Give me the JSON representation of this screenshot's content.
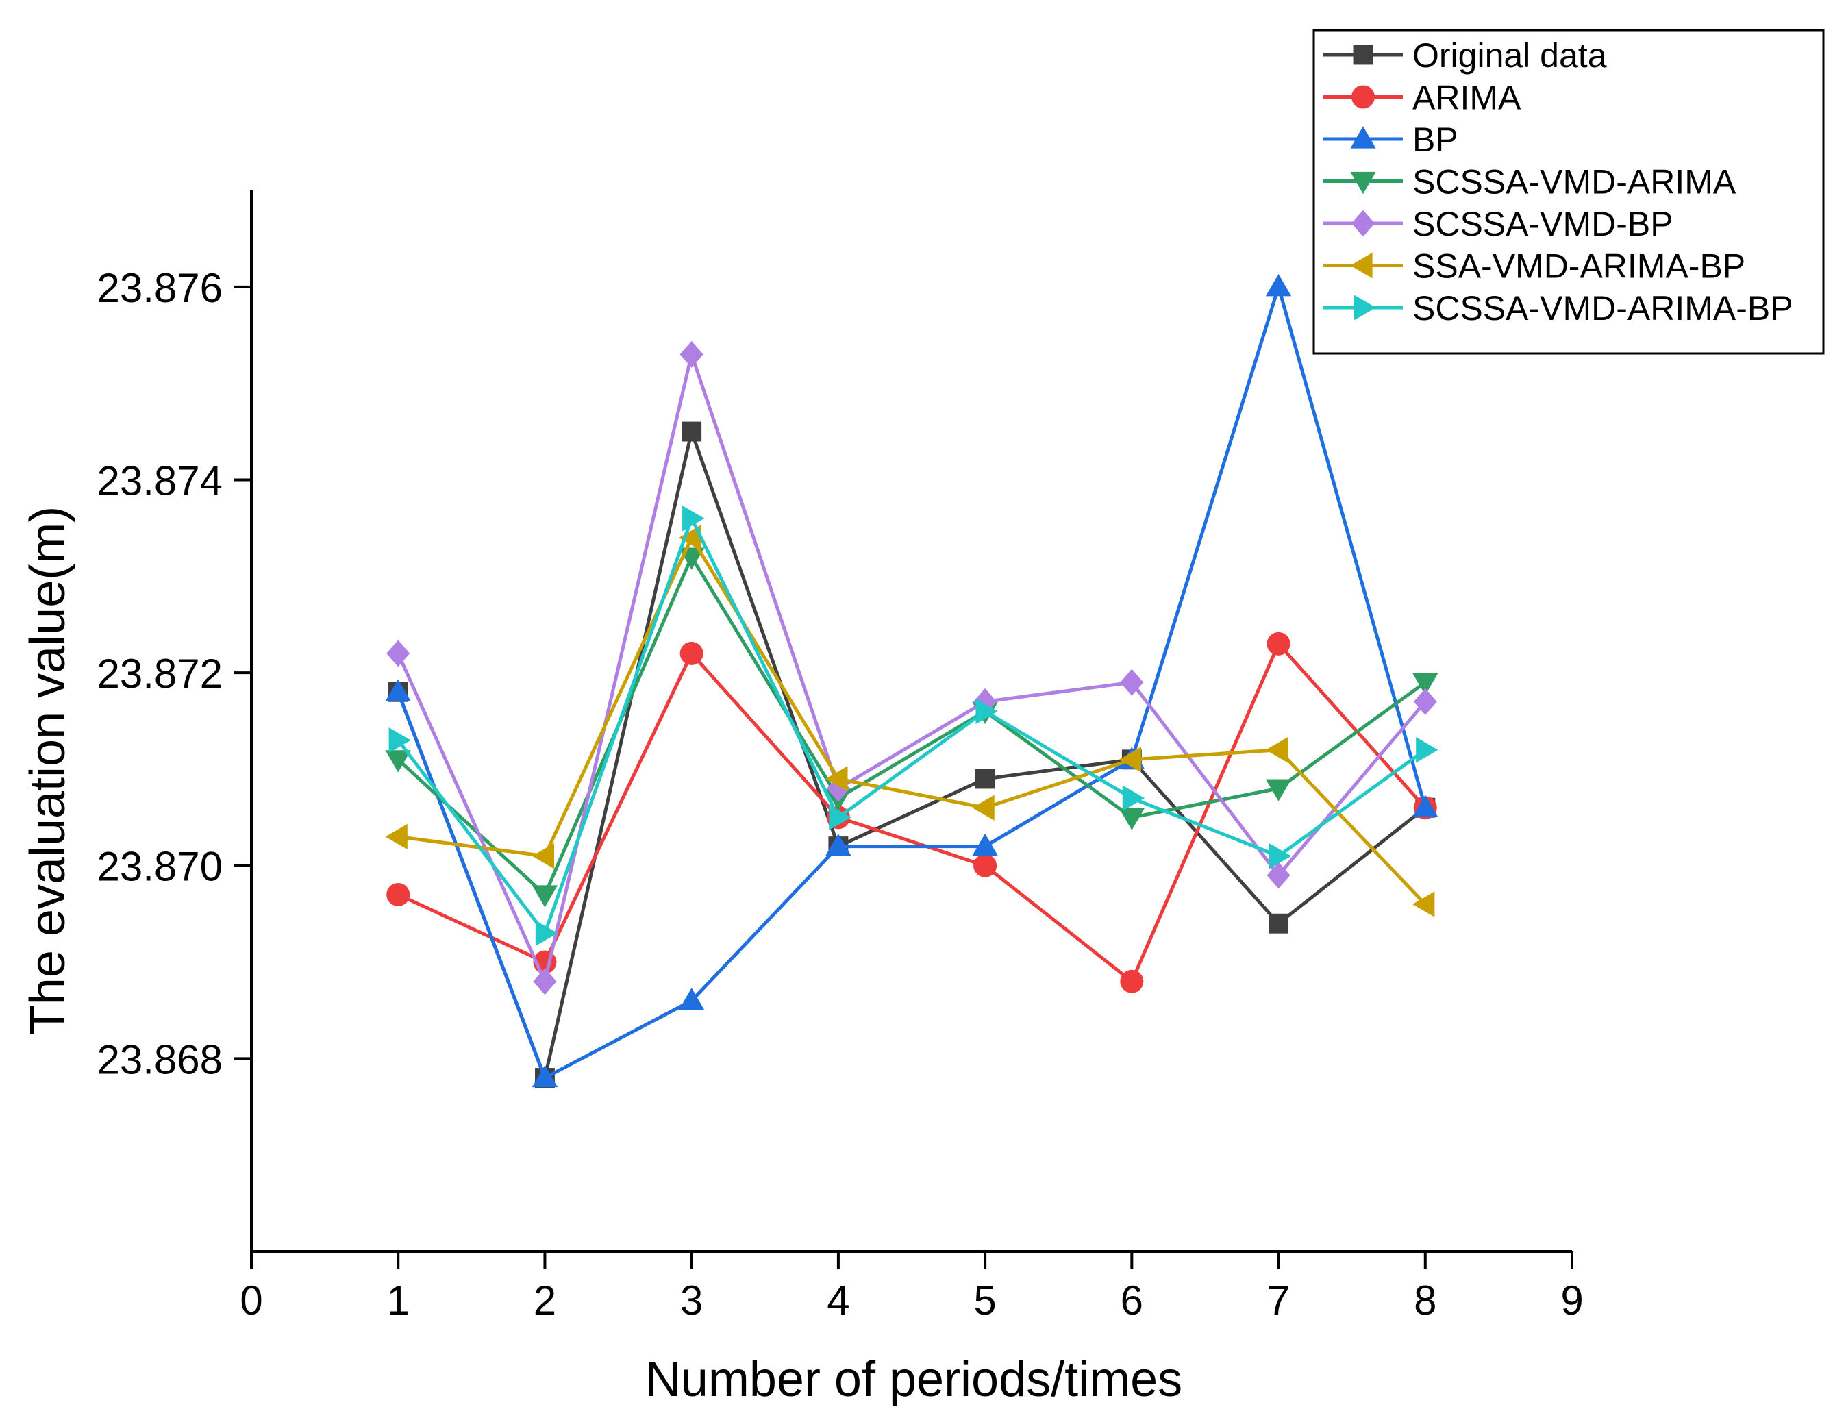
{
  "chart_data": {
    "type": "line",
    "title": "",
    "xlabel": "Number of periods/times",
    "ylabel": "The evaluation value(m)",
    "xlim": [
      0,
      9
    ],
    "ylim": [
      23.866,
      23.877
    ],
    "xticks": [
      0,
      1,
      2,
      3,
      4,
      5,
      6,
      7,
      8,
      9
    ],
    "xtick_labels": [
      "0",
      "1",
      "2",
      "3",
      "4",
      "5",
      "6",
      "7",
      "8",
      "9"
    ],
    "yticks": [
      23.868,
      23.87,
      23.872,
      23.874,
      23.876
    ],
    "ytick_labels": [
      "23.868",
      "23.870",
      "23.872",
      "23.874",
      "23.876"
    ],
    "grid": false,
    "legend_position": "top-right",
    "x": [
      1,
      2,
      3,
      4,
      5,
      6,
      7,
      8
    ],
    "series": [
      {
        "name": "Original data",
        "color": "#404040",
        "marker": "square",
        "values": [
          23.8718,
          23.8678,
          23.8745,
          23.8702,
          23.8709,
          23.8711,
          23.8694,
          23.8706
        ]
      },
      {
        "name": "ARIMA",
        "color": "#ee3b3b",
        "marker": "circle",
        "values": [
          23.8697,
          23.869,
          23.8722,
          23.8705,
          23.87,
          23.8688,
          23.8723,
          23.8706
        ]
      },
      {
        "name": "BP",
        "color": "#1f6fe0",
        "marker": "triangle-up",
        "values": [
          23.8718,
          23.8678,
          23.8686,
          23.8702,
          23.8702,
          23.8711,
          23.876,
          23.8706
        ]
      },
      {
        "name": "SCSSA-VMD-ARIMA",
        "color": "#2e9e62",
        "marker": "triangle-down",
        "values": [
          23.8711,
          23.8697,
          23.8732,
          23.8707,
          23.8716,
          23.8705,
          23.8708,
          23.8719
        ]
      },
      {
        "name": "SCSSA-VMD-BP",
        "color": "#b07fe3",
        "marker": "diamond",
        "values": [
          23.8722,
          23.8688,
          23.8753,
          23.8708,
          23.8717,
          23.8719,
          23.8699,
          23.8717
        ]
      },
      {
        "name": "SSA-VMD-ARIMA-BP",
        "color": "#c9a000",
        "marker": "triangle-left",
        "values": [
          23.8703,
          23.8701,
          23.8734,
          23.8709,
          23.8706,
          23.8711,
          23.8712,
          23.8696
        ]
      },
      {
        "name": "SCSSA-VMD-ARIMA-BP",
        "color": "#22c7c7",
        "marker": "triangle-right",
        "values": [
          23.8713,
          23.8693,
          23.8736,
          23.8705,
          23.8716,
          23.8707,
          23.8701,
          23.8712
        ]
      }
    ]
  }
}
